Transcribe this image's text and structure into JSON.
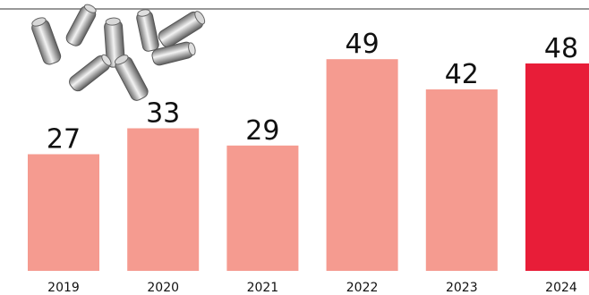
{
  "chart_data": {
    "type": "bar",
    "title": "",
    "xlabel": "",
    "ylabel": "",
    "categories": [
      "2019",
      "2020",
      "2021",
      "2022",
      "2023",
      "2024"
    ],
    "values": [
      27,
      33,
      29,
      49,
      42,
      48
    ],
    "ylim": [
      0,
      60
    ],
    "grid": false,
    "legend": "none",
    "highlight_index": 5,
    "colors": {
      "bar": "#f59b90",
      "highlight": "#e81d38",
      "top_rule": "#777777",
      "text": "#111111"
    },
    "decoration": {
      "icon": "bullets-illustration-icon"
    }
  }
}
